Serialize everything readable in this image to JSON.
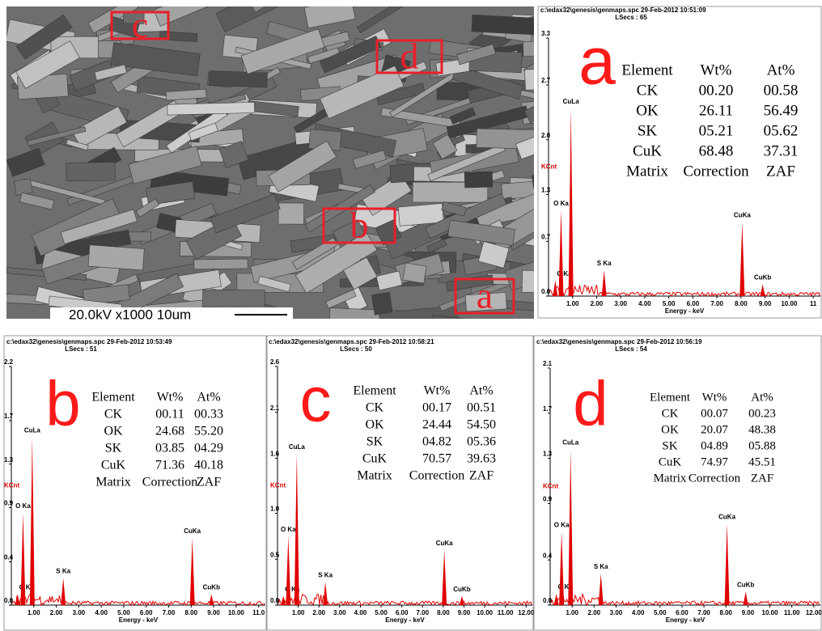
{
  "sem": {
    "boxes": [
      "c",
      "d",
      "b",
      "a"
    ],
    "scale_text": "20.0kV  x1000  10um"
  },
  "spectra": [
    {
      "letter": "a",
      "header": "c:\\edax32\\genesis\\genmaps.spc  29-Feb-2012 10:51:09",
      "lsecs": "LSecs : 65",
      "ylabel": "KCnt",
      "xlabel": "Energy - keV",
      "xlim": [
        0,
        11.3
      ],
      "ylim": [
        0,
        3.3
      ],
      "yticks": [
        {
          "value": 0,
          "label": "0.0"
        },
        0.7,
        1.3,
        {
          "value": 2,
          "label": "2.0"
        },
        2.7,
        3.3
      ],
      "xticks": [
        {
          "value": 1,
          "label": "1.00"
        },
        {
          "value": 2,
          "label": "2.00"
        },
        {
          "value": 3,
          "label": "3.00"
        },
        {
          "value": 4,
          "label": "4.00"
        },
        {
          "value": 5,
          "label": "5.00"
        },
        {
          "value": 6,
          "label": "6.00"
        },
        {
          "value": 7,
          "label": "7.00"
        },
        {
          "value": 8,
          "label": "8.00"
        },
        {
          "value": 9,
          "label": "9.00"
        },
        {
          "value": 10,
          "label": "10.00"
        },
        {
          "value": 11,
          "label": "11"
        }
      ],
      "peaks": [
        {
          "label": "C Ka",
          "x": 0.28,
          "y": 0.2
        },
        {
          "label": "O Ka",
          "x": 0.52,
          "y": 1.1
        },
        {
          "label": "CuLa",
          "x": 0.93,
          "y": 2.4
        },
        {
          "label": "S Ka",
          "x": 2.31,
          "y": 0.33
        },
        {
          "label": "CuKa",
          "x": 8.05,
          "y": 0.95
        },
        {
          "label": "CuKb",
          "x": 8.9,
          "y": 0.15
        }
      ],
      "table": {
        "header": [
          "Element",
          "Wt%",
          "At%"
        ],
        "rows": [
          [
            "CK",
            "00.20",
            "00.58"
          ],
          [
            "OK",
            "26.11",
            "56.49"
          ],
          [
            "SK",
            "05.21",
            "05.62"
          ],
          [
            "CuK",
            "68.48",
            "37.31"
          ]
        ],
        "footer": [
          "Matrix",
          "Correction",
          "ZAF"
        ]
      }
    },
    {
      "letter": "b",
      "header": "c:\\edax32\\genesis\\genmaps.spc  29-Feb-2012 10:53:49",
      "lsecs": "LSecs : 51",
      "ylabel": "KCnt",
      "xlabel": "Energy - keV",
      "xlim": [
        0,
        11.3
      ],
      "ylim": [
        0,
        2.2
      ],
      "yticks": [
        {
          "value": 0,
          "label": "0.0"
        },
        0.4,
        0.9,
        1.3,
        1.7,
        2.2
      ],
      "xticks": [
        {
          "value": 1,
          "label": "1.00"
        },
        {
          "value": 2,
          "label": "2.00"
        },
        {
          "value": 3,
          "label": "3.00"
        },
        {
          "value": 4,
          "label": "4.00"
        },
        {
          "value": 5,
          "label": "5.00"
        },
        {
          "value": 6,
          "label": "6.00"
        },
        {
          "value": 7,
          "label": "7.00"
        },
        {
          "value": 8,
          "label": "8.00"
        },
        {
          "value": 9,
          "label": "9.00"
        },
        {
          "value": 10,
          "label": "10.00"
        },
        {
          "value": 11,
          "label": "11.0"
        }
      ],
      "peaks": [
        {
          "label": "C Ka",
          "x": 0.28,
          "y": 0.1
        },
        {
          "label": "O Ka",
          "x": 0.52,
          "y": 0.85
        },
        {
          "label": "CuLa",
          "x": 0.93,
          "y": 1.55
        },
        {
          "label": "S Ka",
          "x": 2.31,
          "y": 0.25
        },
        {
          "label": "CuKa",
          "x": 8.05,
          "y": 0.62
        },
        {
          "label": "CuKb",
          "x": 8.9,
          "y": 0.1
        }
      ],
      "table": {
        "header": [
          "Element",
          "Wt%",
          "At%"
        ],
        "rows": [
          [
            "CK",
            "00.11",
            "00.33"
          ],
          [
            "OK",
            "24.68",
            "55.20"
          ],
          [
            "SK",
            "03.85",
            "04.29"
          ],
          [
            "CuK",
            "71.36",
            "40.18"
          ]
        ],
        "footer": [
          "Matrix",
          "Correction",
          "ZAF"
        ]
      }
    },
    {
      "letter": "c",
      "header": "c:\\edax32\\genesis\\genmaps.spc  29-Feb-2012 10:58:21",
      "lsecs": "LSecs : 50",
      "ylabel": "KCnt",
      "xlabel": "Energy - keV",
      "xlim": [
        0,
        12.3
      ],
      "ylim": [
        0,
        2.6
      ],
      "yticks": [
        {
          "value": 0,
          "label": "0.0"
        },
        0.5,
        {
          "value": 1,
          "label": "1.0"
        },
        1.6,
        2.1,
        2.6
      ],
      "xticks": [
        {
          "value": 1,
          "label": "1.00"
        },
        {
          "value": 2,
          "label": "2.00"
        },
        {
          "value": 3,
          "label": "3.00"
        },
        {
          "value": 4,
          "label": "4.00"
        },
        {
          "value": 5,
          "label": "5.00"
        },
        {
          "value": 6,
          "label": "6.00"
        },
        {
          "value": 7,
          "label": "7.00"
        },
        {
          "value": 8,
          "label": "8.00"
        },
        {
          "value": 9,
          "label": "9.00"
        },
        {
          "value": 10,
          "label": "10.00"
        },
        {
          "value": 11,
          "label": "11.00"
        },
        {
          "value": 12,
          "label": "12.00"
        }
      ],
      "peaks": [
        {
          "label": "C Ka",
          "x": 0.28,
          "y": 0.1
        },
        {
          "label": "O Ka",
          "x": 0.52,
          "y": 0.75
        },
        {
          "label": "CuLa",
          "x": 0.93,
          "y": 1.65
        },
        {
          "label": "S Ka",
          "x": 2.31,
          "y": 0.25
        },
        {
          "label": "CuKa",
          "x": 8.05,
          "y": 0.6
        },
        {
          "label": "CuKb",
          "x": 8.9,
          "y": 0.1
        }
      ],
      "table": {
        "header": [
          "Element",
          "Wt%",
          "At%"
        ],
        "rows": [
          [
            "CK",
            "00.17",
            "00.51"
          ],
          [
            "OK",
            "24.44",
            "54.50"
          ],
          [
            "SK",
            "04.82",
            "05.36"
          ],
          [
            "CuK",
            "70.57",
            "39.63"
          ]
        ],
        "footer": [
          "Matrix",
          "Correction",
          "ZAF"
        ]
      }
    },
    {
      "letter": "d",
      "header": "c:\\edax32\\genesis\\genmaps.spc  29-Feb-2012 10:56:19",
      "lsecs": "LSecs : 54",
      "ylabel": "KCnt",
      "xlabel": "Energy - keV",
      "xlim": [
        0,
        12.3
      ],
      "ylim": [
        0,
        2.1
      ],
      "yticks": [
        {
          "value": 0,
          "label": "0.0"
        },
        0.4,
        0.9,
        1.3,
        1.7,
        2.1
      ],
      "xticks": [
        {
          "value": 1,
          "label": "1.00"
        },
        {
          "value": 2,
          "label": "2.00"
        },
        {
          "value": 3,
          "label": "3.00"
        },
        {
          "value": 4,
          "label": "4.00"
        },
        {
          "value": 5,
          "label": "5.00"
        },
        {
          "value": 6,
          "label": "6.00"
        },
        {
          "value": 7,
          "label": "7.00"
        },
        {
          "value": 8,
          "label": "8.00"
        },
        {
          "value": 9,
          "label": "9.00"
        },
        {
          "value": 10,
          "label": "10.00"
        },
        {
          "value": 11,
          "label": "11.00"
        },
        {
          "value": 12,
          "label": "12.00"
        }
      ],
      "peaks": [
        {
          "label": "C Ka",
          "x": 0.28,
          "y": 0.1
        },
        {
          "label": "O Ka",
          "x": 0.52,
          "y": 0.65
        },
        {
          "label": "CuLa",
          "x": 0.93,
          "y": 1.38
        },
        {
          "label": "S Ka",
          "x": 2.31,
          "y": 0.28
        },
        {
          "label": "CuKa",
          "x": 8.05,
          "y": 0.72
        },
        {
          "label": "CuKb",
          "x": 8.9,
          "y": 0.12
        }
      ],
      "table": {
        "header": [
          "Element",
          "Wt%",
          "At%"
        ],
        "rows": [
          [
            "CK",
            "00.07",
            "00.23"
          ],
          [
            "OK",
            "20.07",
            "48.38"
          ],
          [
            "SK",
            "04.89",
            "05.88"
          ],
          [
            "CuK",
            "74.97",
            "45.51"
          ]
        ],
        "footer": [
          "Matrix",
          "Correction",
          "ZAF"
        ]
      }
    }
  ]
}
